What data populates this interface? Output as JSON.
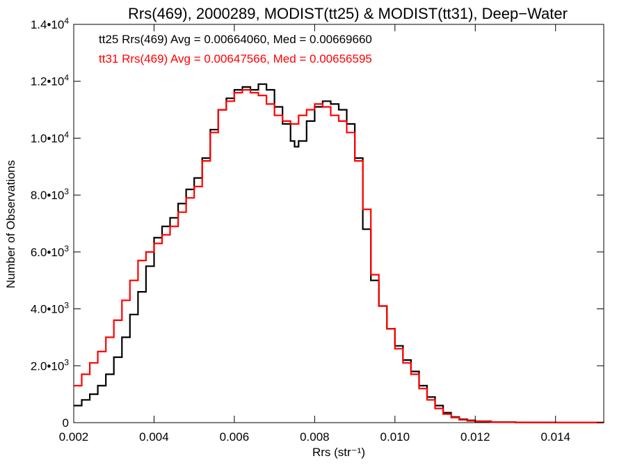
{
  "chart_data": {
    "type": "line",
    "title": "Rrs(469), 2000289, MODIST(tt25) & MODIST(tt31), Deep−Water",
    "xlabel": "Rrs (str⁻¹)",
    "ylabel": "Number of Observations",
    "xlim": [
      0.002,
      0.0152
    ],
    "ylim": [
      0,
      14000
    ],
    "grid": false,
    "legend_position": "top-left",
    "x_ticks": [
      {
        "value": 0.002,
        "label": "0.002"
      },
      {
        "value": 0.004,
        "label": "0.004"
      },
      {
        "value": 0.006,
        "label": "0.006"
      },
      {
        "value": 0.008,
        "label": "0.008"
      },
      {
        "value": 0.01,
        "label": "0.010"
      },
      {
        "value": 0.012,
        "label": "0.012"
      },
      {
        "value": 0.014,
        "label": "0.014"
      }
    ],
    "y_ticks": [
      {
        "value": 0,
        "mantissa": "0",
        "exp": ""
      },
      {
        "value": 2000,
        "mantissa": "2.0•10",
        "exp": "3"
      },
      {
        "value": 4000,
        "mantissa": "4.0•10",
        "exp": "3"
      },
      {
        "value": 6000,
        "mantissa": "6.0•10",
        "exp": "3"
      },
      {
        "value": 8000,
        "mantissa": "8.0•10",
        "exp": "3"
      },
      {
        "value": 10000,
        "mantissa": "1.0•10",
        "exp": "4"
      },
      {
        "value": 12000,
        "mantissa": "1.2•10",
        "exp": "4"
      },
      {
        "value": 14000,
        "mantissa": "1.4•10",
        "exp": "4"
      }
    ],
    "series": [
      {
        "legend": "tt25 Rrs(469) Avg = 0.00664060, Med = 0.00669660",
        "color": "#000000",
        "x": [
          0.002,
          0.0022,
          0.0024,
          0.0026,
          0.0028,
          0.003,
          0.0032,
          0.0034,
          0.0036,
          0.0038,
          0.004,
          0.0042,
          0.0044,
          0.0046,
          0.0048,
          0.005,
          0.0052,
          0.0054,
          0.0056,
          0.0058,
          0.006,
          0.0062,
          0.0064,
          0.0066,
          0.0068,
          0.007,
          0.0072,
          0.0074,
          0.0075,
          0.0076,
          0.0078,
          0.008,
          0.0082,
          0.0084,
          0.0086,
          0.0088,
          0.009,
          0.0092,
          0.0094,
          0.0096,
          0.0098,
          0.01,
          0.0102,
          0.0104,
          0.0106,
          0.0108,
          0.011,
          0.0112,
          0.0114,
          0.0116,
          0.0118,
          0.012,
          0.0124,
          0.013,
          0.014,
          0.0152
        ],
        "y": [
          600,
          800,
          1000,
          1300,
          1700,
          2300,
          3000,
          3800,
          4600,
          5500,
          6500,
          6900,
          7200,
          7700,
          8200,
          8600,
          9300,
          10300,
          11000,
          11400,
          11700,
          11800,
          11700,
          11900,
          11700,
          11100,
          10500,
          9900,
          9700,
          9900,
          10600,
          11100,
          11300,
          11200,
          11000,
          10500,
          9300,
          6800,
          5000,
          4100,
          3300,
          2700,
          2200,
          1800,
          1300,
          900,
          600,
          350,
          200,
          120,
          80,
          50,
          20,
          10,
          5,
          2
        ]
      },
      {
        "legend": "tt31 Rrs(469) Avg = 0.00647566, Med = 0.00656595",
        "color": "#ff0000",
        "x": [
          0.002,
          0.0022,
          0.0024,
          0.0026,
          0.0028,
          0.003,
          0.0032,
          0.0034,
          0.0036,
          0.0038,
          0.004,
          0.0042,
          0.0044,
          0.0046,
          0.0048,
          0.005,
          0.0052,
          0.0054,
          0.0056,
          0.0058,
          0.006,
          0.0062,
          0.0064,
          0.0066,
          0.0068,
          0.007,
          0.0072,
          0.0074,
          0.0076,
          0.0078,
          0.008,
          0.0082,
          0.0084,
          0.0086,
          0.0088,
          0.009,
          0.0092,
          0.0094,
          0.0096,
          0.0098,
          0.01,
          0.0102,
          0.0104,
          0.0106,
          0.0108,
          0.011,
          0.0112,
          0.0114,
          0.0116,
          0.0118,
          0.012,
          0.0124,
          0.013,
          0.014,
          0.0152
        ],
        "y": [
          1300,
          1700,
          2100,
          2500,
          3000,
          3600,
          4300,
          5000,
          5700,
          6000,
          6300,
          6600,
          6900,
          7400,
          7900,
          8300,
          9200,
          10200,
          11000,
          11300,
          11600,
          11700,
          11600,
          11500,
          11200,
          10800,
          10600,
          10500,
          10800,
          11000,
          11200,
          11100,
          10800,
          10600,
          10200,
          9200,
          7500,
          5200,
          4100,
          3300,
          2600,
          2100,
          1700,
          1200,
          800,
          500,
          300,
          180,
          100,
          60,
          40,
          15,
          8,
          4,
          2
        ]
      }
    ]
  }
}
